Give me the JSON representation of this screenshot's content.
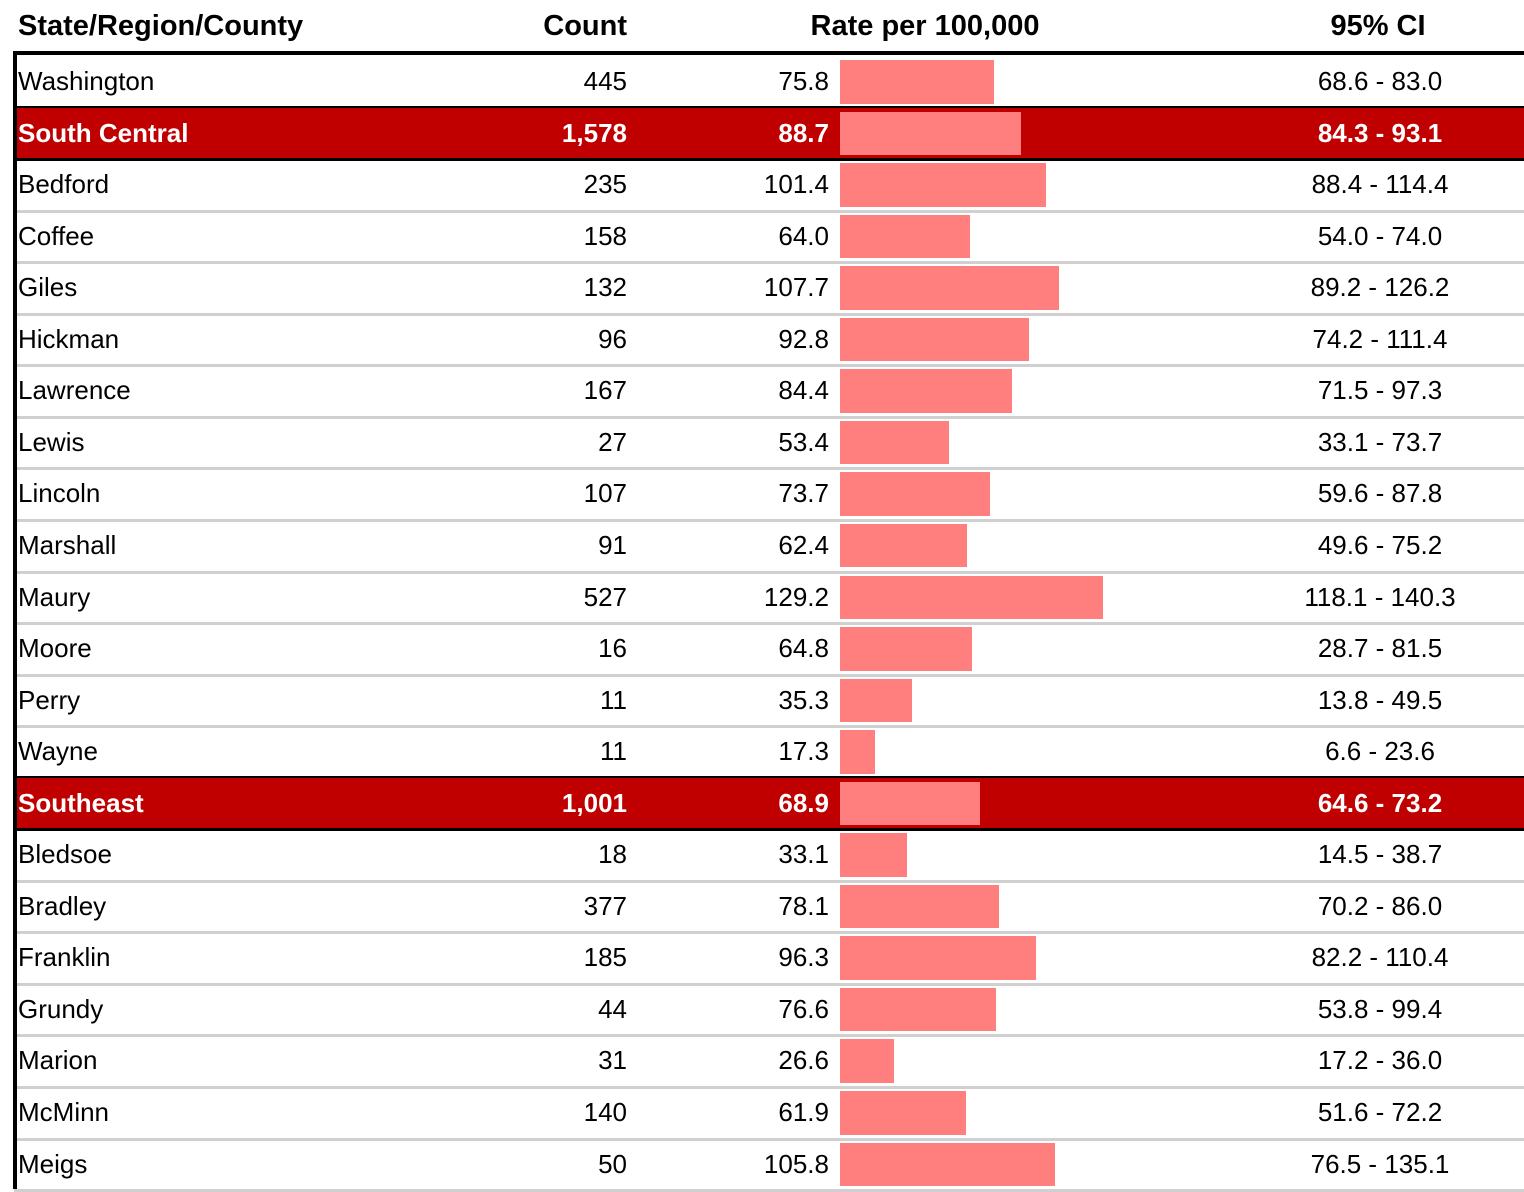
{
  "table": {
    "columns": [
      "State/Region/County",
      "Count",
      "Rate per 100,000",
      "95% CI"
    ],
    "rows": [
      {
        "kind": "county",
        "name": "Washington",
        "count": "445",
        "rate": "75.8",
        "ci": "68.6 - 83.0"
      },
      {
        "kind": "region",
        "name": "South Central",
        "count": "1,578",
        "rate": "88.7",
        "ci": "84.3 - 93.1"
      },
      {
        "kind": "county",
        "name": "Bedford",
        "count": "235",
        "rate": "101.4",
        "ci": "88.4 - 114.4"
      },
      {
        "kind": "county",
        "name": "Coffee",
        "count": "158",
        "rate": "64.0",
        "ci": "54.0 - 74.0"
      },
      {
        "kind": "county",
        "name": "Giles",
        "count": "132",
        "rate": "107.7",
        "ci": "89.2 - 126.2"
      },
      {
        "kind": "county",
        "name": "Hickman",
        "count": "96",
        "rate": "92.8",
        "ci": "74.2 - 111.4"
      },
      {
        "kind": "county",
        "name": "Lawrence",
        "count": "167",
        "rate": "84.4",
        "ci": "71.5 - 97.3"
      },
      {
        "kind": "county",
        "name": "Lewis",
        "count": "27",
        "rate": "53.4",
        "ci": "33.1 - 73.7"
      },
      {
        "kind": "county",
        "name": "Lincoln",
        "count": "107",
        "rate": "73.7",
        "ci": "59.6 - 87.8"
      },
      {
        "kind": "county",
        "name": "Marshall",
        "count": "91",
        "rate": "62.4",
        "ci": "49.6 - 75.2"
      },
      {
        "kind": "county",
        "name": "Maury",
        "count": "527",
        "rate": "129.2",
        "ci": "118.1 - 140.3"
      },
      {
        "kind": "county",
        "name": "Moore",
        "count": "16",
        "rate": "64.8",
        "ci": "28.7 - 81.5"
      },
      {
        "kind": "county",
        "name": "Perry",
        "count": "11",
        "rate": "35.3",
        "ci": "13.8 - 49.5"
      },
      {
        "kind": "county",
        "name": "Wayne",
        "count": "11",
        "rate": "17.3",
        "ci": "6.6 - 23.6"
      },
      {
        "kind": "region",
        "name": "Southeast",
        "count": "1,001",
        "rate": "68.9",
        "ci": "64.6 - 73.2"
      },
      {
        "kind": "county",
        "name": "Bledsoe",
        "count": "18",
        "rate": "33.1",
        "ci": "14.5 - 38.7"
      },
      {
        "kind": "county",
        "name": "Bradley",
        "count": "377",
        "rate": "78.1",
        "ci": "70.2 - 86.0"
      },
      {
        "kind": "county",
        "name": "Franklin",
        "count": "185",
        "rate": "96.3",
        "ci": "82.2 - 110.4"
      },
      {
        "kind": "county",
        "name": "Grundy",
        "count": "44",
        "rate": "76.6",
        "ci": "53.8 - 99.4"
      },
      {
        "kind": "county",
        "name": "Marion",
        "count": "31",
        "rate": "26.6",
        "ci": "17.2 - 36.0"
      },
      {
        "kind": "county",
        "name": "McMinn",
        "count": "140",
        "rate": "61.9",
        "ci": "51.6 - 72.2"
      },
      {
        "kind": "county",
        "name": "Meigs",
        "count": "50",
        "rate": "105.8",
        "ci": "76.5 - 135.1"
      }
    ]
  }
}
